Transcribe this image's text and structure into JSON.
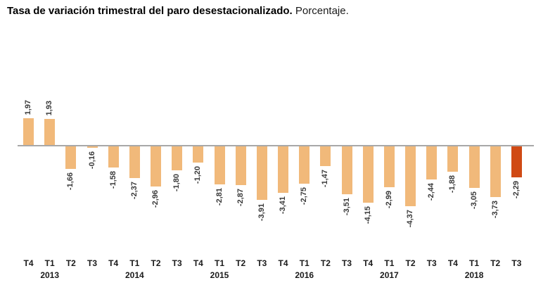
{
  "header": {
    "title_bold": "Tasa de variación trimestral del paro desestacionalizado.",
    "title_regular": "Porcentaje."
  },
  "chart_data": {
    "type": "bar",
    "title": "Tasa de variación trimestral del paro desestacionalizado.",
    "subtitle": "Porcentaje.",
    "ylabel": "",
    "xlabel": "",
    "unit": "percent",
    "grid": false,
    "legend": false,
    "ylim": [
      -5,
      2.5
    ],
    "categories": [
      "T4",
      "T1",
      "T2",
      "T3",
      "T4",
      "T1",
      "T2",
      "T3",
      "T4",
      "T1",
      "T2",
      "T3",
      "T4",
      "T1",
      "T2",
      "T3",
      "T4",
      "T1",
      "T2",
      "T3",
      "T4",
      "T1",
      "T2",
      "T3"
    ],
    "year_markers": [
      {
        "index": 1,
        "label": "2013"
      },
      {
        "index": 5,
        "label": "2014"
      },
      {
        "index": 9,
        "label": "2015"
      },
      {
        "index": 13,
        "label": "2016"
      },
      {
        "index": 17,
        "label": "2017"
      },
      {
        "index": 21,
        "label": "2018"
      }
    ],
    "values": [
      1.97,
      1.93,
      -1.66,
      -0.16,
      -1.58,
      -2.37,
      -2.96,
      -1.8,
      -1.2,
      -2.81,
      -2.87,
      -3.91,
      -3.41,
      -2.75,
      -1.47,
      -3.51,
      -4.15,
      -2.99,
      -4.37,
      -2.44,
      -1.88,
      -3.05,
      -3.73,
      -2.29
    ],
    "value_labels": [
      "1,97",
      "1,93",
      "-1,66",
      "-0,16",
      "-1,58",
      "-2,37",
      "-2,96",
      "-1,80",
      "-1,20",
      "-2,81",
      "-2,87",
      "-3,91",
      "-3,41",
      "-2,75",
      "-1,47",
      "-3,51",
      "-4,15",
      "-2,99",
      "-4,37",
      "-2,44",
      "-1,88",
      "-3,05",
      "-3,73",
      "-2,29"
    ],
    "highlighted_index": 23,
    "colors": {
      "bar": "#F1B97A",
      "highlight": "#D04A15",
      "axis_line": "#A8A8A8",
      "value_label": "#3A3A3A",
      "axis_label": "#1A1A1A"
    }
  }
}
